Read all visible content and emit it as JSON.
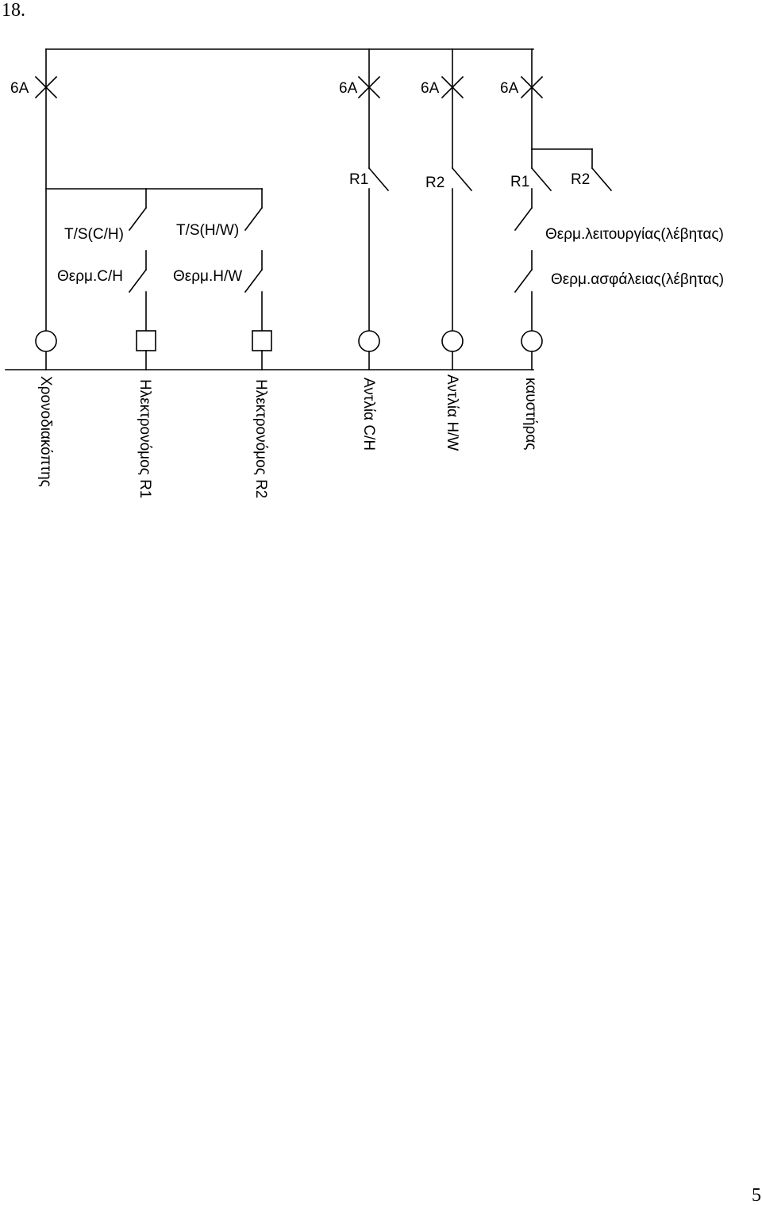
{
  "page": {
    "number_top": "18.",
    "number_bottom": "5"
  },
  "breakers": [
    {
      "label": "6A"
    },
    {
      "label": "6A"
    },
    {
      "label": "6A"
    },
    {
      "label": "6A"
    }
  ],
  "relay_contacts": [
    {
      "label": "R1"
    },
    {
      "label": "R2"
    },
    {
      "label": "R1"
    },
    {
      "label": "R2"
    }
  ],
  "switches": {
    "ts_ch": "T/S(C/H)",
    "ts_hw": "T/S(H/W)",
    "therm_ch": "Θερμ.C/H",
    "therm_hw": "Θερμ.H/W",
    "therm_operation": "Θερμ.λειτουργίας(λέβητας)",
    "therm_safety": "Θερμ.ασφάλειας(λέβητας)"
  },
  "loads": [
    {
      "label": "Χρονοδιακόπτης"
    },
    {
      "label": "Ηλεκτρονόμος R1"
    },
    {
      "label": "Ηλεκτρονόμος R2"
    },
    {
      "label": "Αντλία C/H"
    },
    {
      "label": "Αντλία H/W"
    },
    {
      "label": "καυστήρας"
    }
  ]
}
